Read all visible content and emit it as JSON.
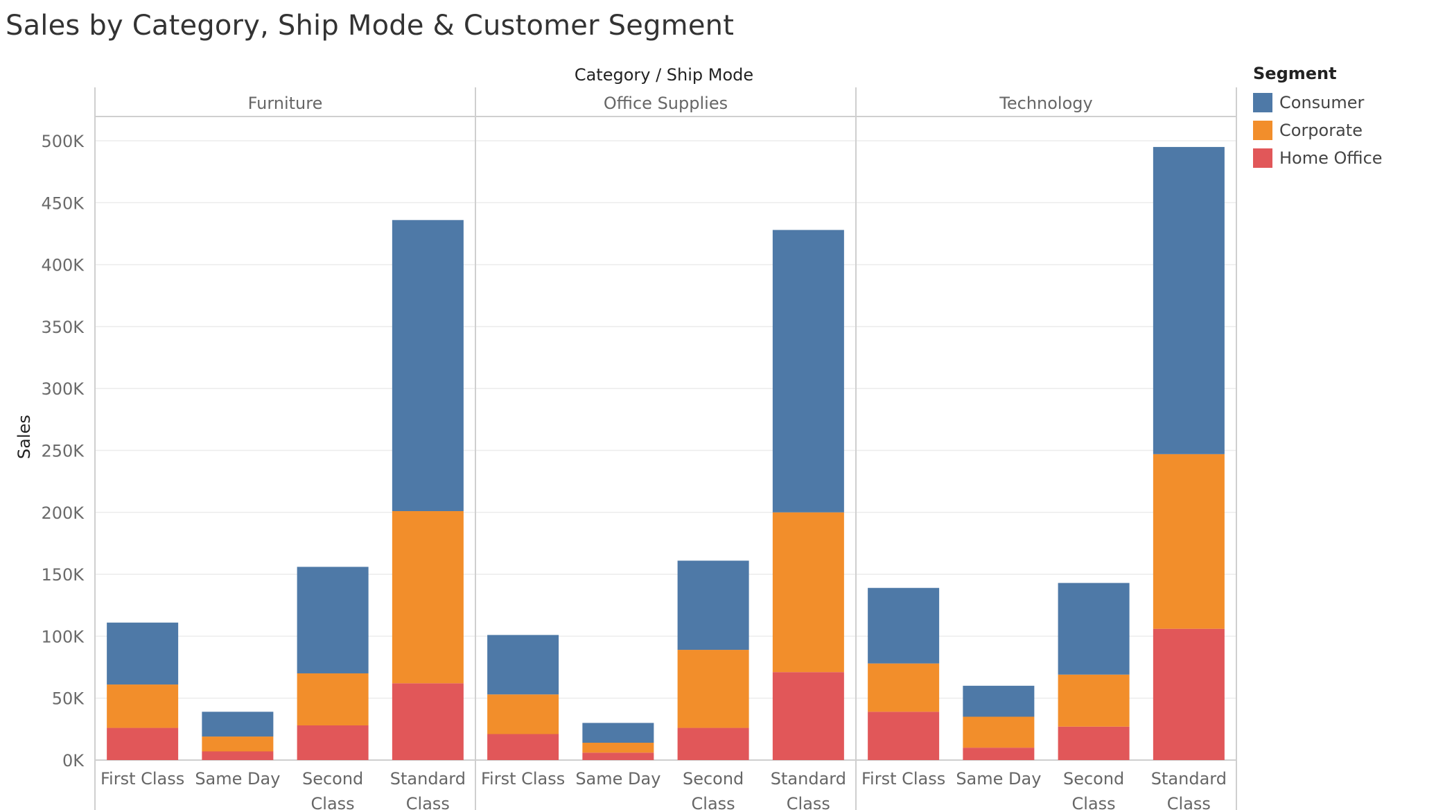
{
  "title": "Sales by Category, Ship Mode & Customer Segment",
  "chart_data": {
    "type": "bar",
    "stacked": true,
    "column_header": "Category / Ship Mode",
    "ylabel": "Sales",
    "ylim": [
      0,
      520000
    ],
    "yticks": [
      {
        "value": 0,
        "label": "0K"
      },
      {
        "value": 50000,
        "label": "50K"
      },
      {
        "value": 100000,
        "label": "100K"
      },
      {
        "value": 150000,
        "label": "150K"
      },
      {
        "value": 200000,
        "label": "200K"
      },
      {
        "value": 250000,
        "label": "250K"
      },
      {
        "value": 300000,
        "label": "300K"
      },
      {
        "value": 350000,
        "label": "350K"
      },
      {
        "value": 400000,
        "label": "400K"
      },
      {
        "value": 450000,
        "label": "450K"
      },
      {
        "value": 500000,
        "label": "500K"
      }
    ],
    "grid": true,
    "legend": {
      "title": "Segment",
      "position": "right"
    },
    "ship_modes": [
      [
        "First Class"
      ],
      [
        "Same Day"
      ],
      [
        "Second",
        "Class"
      ],
      [
        "Standard",
        "Class"
      ]
    ],
    "segments": [
      {
        "name": "Home Office",
        "color": "#e15759"
      },
      {
        "name": "Corporate",
        "color": "#f28e2b"
      },
      {
        "name": "Consumer",
        "color": "#4e79a7"
      }
    ],
    "legend_order": [
      "Consumer",
      "Corporate",
      "Home Office"
    ],
    "categories": [
      {
        "name": "Furniture",
        "values": {
          "Home Office": [
            26000,
            7000,
            28000,
            62000
          ],
          "Corporate": [
            35000,
            12000,
            42000,
            139000
          ],
          "Consumer": [
            50000,
            20000,
            86000,
            235000
          ]
        }
      },
      {
        "name": "Office Supplies",
        "values": {
          "Home Office": [
            21000,
            6000,
            26000,
            71000
          ],
          "Corporate": [
            32000,
            8000,
            63000,
            129000
          ],
          "Consumer": [
            48000,
            16000,
            72000,
            228000
          ]
        }
      },
      {
        "name": "Technology",
        "values": {
          "Home Office": [
            39000,
            10000,
            27000,
            106000
          ],
          "Corporate": [
            39000,
            25000,
            42000,
            141000
          ],
          "Consumer": [
            61000,
            25000,
            74000,
            248000
          ]
        }
      }
    ]
  }
}
